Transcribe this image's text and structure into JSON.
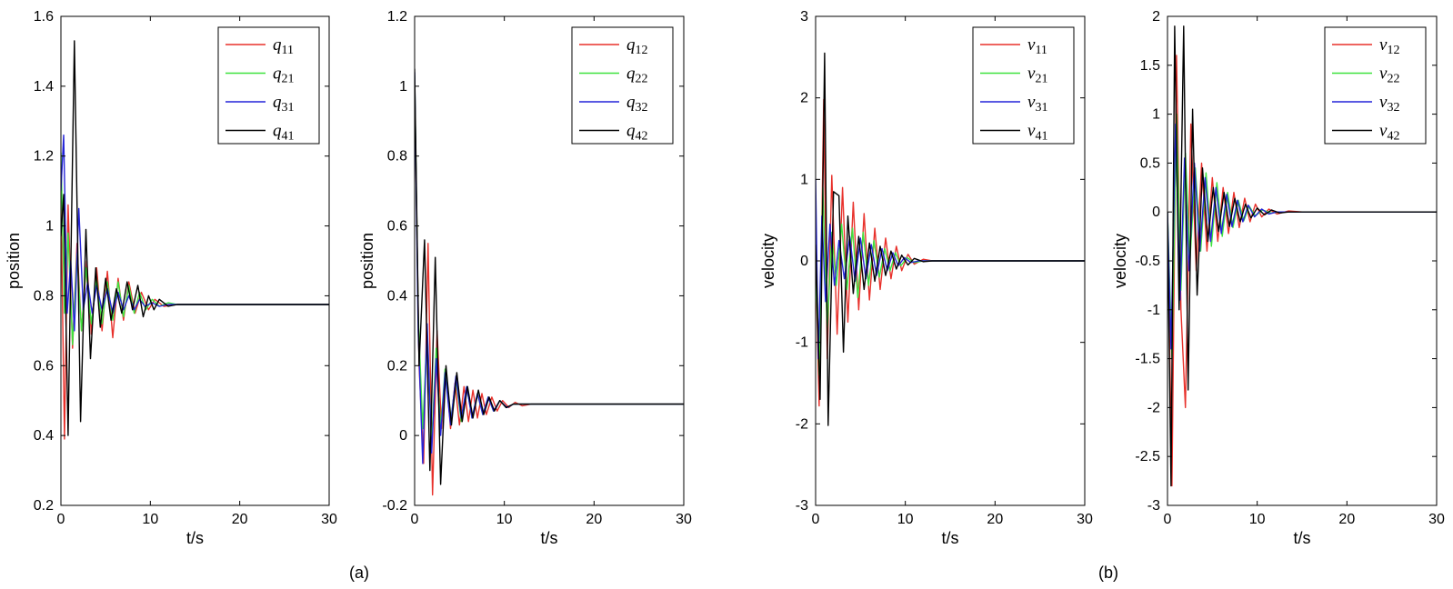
{
  "captions": [
    "(a)",
    "(b)"
  ],
  "colors": {
    "red": "#e8302a",
    "green": "#3ee23e",
    "blue": "#2424d8",
    "black": "#000000"
  },
  "chart_data": [
    {
      "type": "line",
      "xlabel": "t/s",
      "ylabel": "position",
      "xlim": [
        0,
        30
      ],
      "ylim": [
        0.2,
        1.6
      ],
      "xticks": [
        "0",
        "10",
        "20",
        "30"
      ],
      "yticks": [
        "0.2",
        "0.4",
        "0.6",
        "0.8",
        "1",
        "1.2",
        "1.4",
        "1.6"
      ],
      "legend_placement": "top-right",
      "series": [
        {
          "name": "q",
          "sub": "11",
          "color": "#e8302a",
          "x": [
            0,
            0.4,
            0.8,
            1.3,
            1.8,
            2.3,
            2.9,
            3.4,
            4.0,
            4.6,
            5.2,
            5.8,
            6.4,
            7.0,
            7.6,
            8.3,
            9.0,
            9.8,
            10.5,
            11.5,
            13,
            30
          ],
          "y": [
            1.08,
            0.39,
            1.06,
            0.65,
            0.95,
            0.7,
            0.9,
            0.69,
            0.88,
            0.7,
            0.87,
            0.68,
            0.85,
            0.73,
            0.84,
            0.75,
            0.81,
            0.76,
            0.79,
            0.77,
            0.775,
            0.775
          ]
        },
        {
          "name": "q",
          "sub": "21",
          "color": "#3ee23e",
          "x": [
            0,
            0.4,
            0.8,
            1.3,
            1.8,
            2.3,
            2.8,
            3.4,
            4.0,
            4.6,
            5.2,
            5.8,
            6.4,
            7.0,
            7.6,
            8.2,
            8.8,
            9.5,
            10.2,
            11,
            12,
            13,
            30
          ],
          "y": [
            1.21,
            0.75,
            0.98,
            0.66,
            0.92,
            0.7,
            0.88,
            0.72,
            0.85,
            0.72,
            0.84,
            0.73,
            0.84,
            0.74,
            0.83,
            0.75,
            0.81,
            0.76,
            0.79,
            0.77,
            0.78,
            0.775,
            0.775
          ]
        },
        {
          "name": "q",
          "sub": "31",
          "color": "#2424d8",
          "x": [
            0,
            0.3,
            0.7,
            1.1,
            1.5,
            2.0,
            2.5,
            3.0,
            3.5,
            4.0,
            4.6,
            5.2,
            5.8,
            6.4,
            7.0,
            7.6,
            8.2,
            8.8,
            9.4,
            10.2,
            11,
            12,
            30
          ],
          "y": [
            1.1,
            1.26,
            0.75,
            0.9,
            0.7,
            1.05,
            0.76,
            0.84,
            0.75,
            0.83,
            0.76,
            0.82,
            0.75,
            0.81,
            0.76,
            0.8,
            0.76,
            0.79,
            0.77,
            0.78,
            0.77,
            0.775,
            0.775
          ]
        },
        {
          "name": "q",
          "sub": "41",
          "color": "#000000",
          "x": [
            0,
            0.3,
            0.8,
            1.5,
            2.2,
            2.8,
            3.3,
            3.9,
            4.4,
            5.0,
            5.6,
            6.2,
            6.8,
            7.4,
            8.0,
            8.6,
            9.2,
            9.8,
            10.4,
            11,
            12,
            13,
            30
          ],
          "y": [
            0.97,
            1.09,
            0.4,
            1.53,
            0.44,
            0.99,
            0.62,
            0.88,
            0.71,
            0.85,
            0.73,
            0.82,
            0.75,
            0.84,
            0.76,
            0.83,
            0.74,
            0.8,
            0.76,
            0.79,
            0.77,
            0.775,
            0.775
          ]
        }
      ]
    },
    {
      "type": "line",
      "xlabel": "t/s",
      "ylabel": "position",
      "xlim": [
        0,
        30
      ],
      "ylim": [
        -0.2,
        1.2
      ],
      "xticks": [
        "0",
        "10",
        "20",
        "30"
      ],
      "yticks": [
        "-0.2",
        "0",
        "0.2",
        "0.4",
        "0.6",
        "0.8",
        "1",
        "1.2"
      ],
      "legend_placement": "top-right",
      "series": [
        {
          "name": "q",
          "sub": "12",
          "color": "#e8302a",
          "x": [
            0,
            0.5,
            1.0,
            1.5,
            2.0,
            2.5,
            3.0,
            3.5,
            4.0,
            4.5,
            5.0,
            5.5,
            6.0,
            6.5,
            7.0,
            7.5,
            8.0,
            8.6,
            9.2,
            9.8,
            10.5,
            11.2,
            12,
            13,
            30
          ],
          "y": [
            1.0,
            0.2,
            -0.08,
            0.55,
            -0.17,
            0.3,
            0.02,
            0.18,
            0.02,
            0.15,
            0.03,
            0.14,
            0.04,
            0.13,
            0.05,
            0.12,
            0.06,
            0.11,
            0.07,
            0.1,
            0.08,
            0.095,
            0.085,
            0.09,
            0.09
          ]
        },
        {
          "name": "q",
          "sub": "22",
          "color": "#3ee23e",
          "x": [
            0,
            0.4,
            0.9,
            1.4,
            1.9,
            2.4,
            2.9,
            3.4,
            4.0,
            4.6,
            5.2,
            5.8,
            6.4,
            7.0,
            7.6,
            8.2,
            8.8,
            9.5,
            10.3,
            11,
            12,
            30
          ],
          "y": [
            1.03,
            0.35,
            0.02,
            0.3,
            -0.02,
            0.25,
            0.02,
            0.19,
            0.04,
            0.16,
            0.04,
            0.14,
            0.05,
            0.12,
            0.06,
            0.11,
            0.07,
            0.1,
            0.08,
            0.09,
            0.09,
            0.09
          ]
        },
        {
          "name": "q",
          "sub": "32",
          "color": "#2424d8",
          "x": [
            0,
            0.4,
            0.9,
            1.4,
            1.9,
            2.4,
            2.9,
            3.4,
            4.0,
            4.6,
            5.2,
            5.8,
            6.4,
            7.0,
            7.6,
            8.2,
            8.8,
            9.5,
            10.3,
            11,
            12,
            30
          ],
          "y": [
            1.04,
            0.3,
            -0.08,
            0.32,
            -0.05,
            0.22,
            0.0,
            0.18,
            0.03,
            0.17,
            0.05,
            0.14,
            0.05,
            0.12,
            0.06,
            0.11,
            0.07,
            0.1,
            0.08,
            0.09,
            0.09,
            0.09
          ]
        },
        {
          "name": "q",
          "sub": "42",
          "color": "#000000",
          "x": [
            0,
            0.5,
            1.1,
            1.7,
            2.3,
            2.9,
            3.5,
            4.1,
            4.7,
            5.3,
            5.9,
            6.5,
            7.1,
            7.7,
            8.3,
            8.9,
            9.5,
            10.2,
            11,
            12,
            30
          ],
          "y": [
            1.05,
            0.2,
            0.56,
            -0.1,
            0.51,
            -0.14,
            0.2,
            0.03,
            0.18,
            0.04,
            0.14,
            0.05,
            0.13,
            0.06,
            0.11,
            0.07,
            0.1,
            0.08,
            0.09,
            0.09,
            0.09
          ]
        }
      ]
    },
    {
      "type": "line",
      "xlabel": "t/s",
      "ylabel": "velocity",
      "xlim": [
        0,
        30
      ],
      "ylim": [
        -3,
        3
      ],
      "xticks": [
        "0",
        "10",
        "20",
        "30"
      ],
      "yticks": [
        "-3",
        "-2",
        "-1",
        "0",
        "1",
        "2",
        "3"
      ],
      "legend_placement": "top-right",
      "series": [
        {
          "name": "v",
          "sub": "11",
          "color": "#e8302a",
          "x": [
            0,
            0.4,
            0.9,
            1.3,
            1.8,
            2.4,
            3.0,
            3.6,
            4.2,
            4.8,
            5.4,
            6.0,
            6.6,
            7.2,
            7.8,
            8.4,
            9.0,
            9.6,
            10.3,
            11,
            12,
            13,
            30
          ],
          "y": [
            0,
            -1.78,
            1.98,
            -1.2,
            1.05,
            -0.9,
            0.9,
            -0.75,
            0.72,
            -0.6,
            0.58,
            -0.48,
            0.4,
            -0.35,
            0.28,
            -0.22,
            0.18,
            -0.12,
            0.08,
            -0.04,
            0.02,
            0,
            0
          ]
        },
        {
          "name": "v",
          "sub": "21",
          "color": "#3ee23e",
          "x": [
            0,
            0.4,
            0.8,
            1.3,
            1.8,
            2.3,
            2.9,
            3.5,
            4.1,
            4.7,
            5.3,
            5.9,
            6.5,
            7.1,
            7.7,
            8.3,
            8.9,
            9.5,
            10.2,
            11,
            12,
            30
          ],
          "y": [
            0,
            -1.4,
            0.9,
            -0.85,
            0.35,
            -0.3,
            0.45,
            -0.35,
            0.4,
            -0.45,
            0.35,
            -0.3,
            0.25,
            -0.2,
            0.15,
            -0.12,
            0.1,
            -0.06,
            0.04,
            -0.02,
            0,
            0
          ]
        },
        {
          "name": "v",
          "sub": "31",
          "color": "#2424d8",
          "x": [
            0,
            0.3,
            0.7,
            1.1,
            1.6,
            2.1,
            2.6,
            3.2,
            3.8,
            4.4,
            5.0,
            5.6,
            6.2,
            6.8,
            7.4,
            8.0,
            8.6,
            9.2,
            9.9,
            10.6,
            11.5,
            30
          ],
          "y": [
            1.0,
            -1.2,
            0.55,
            -0.5,
            0.45,
            -0.3,
            0.25,
            -0.22,
            0.3,
            -0.25,
            0.28,
            -0.22,
            0.2,
            -0.18,
            0.15,
            -0.12,
            0.1,
            -0.06,
            0.04,
            -0.02,
            0,
            0
          ]
        },
        {
          "name": "v",
          "sub": "41",
          "color": "#000000",
          "x": [
            0,
            0.5,
            1.0,
            1.4,
            2.0,
            2.6,
            3.1,
            3.6,
            4.2,
            4.8,
            5.4,
            6.0,
            6.6,
            7.2,
            7.8,
            8.4,
            9.0,
            9.6,
            10.3,
            11,
            12,
            13,
            30
          ],
          "y": [
            0.2,
            -1.7,
            2.55,
            -2.02,
            0.85,
            0.8,
            -1.12,
            0.55,
            -0.4,
            0.3,
            -0.35,
            0.22,
            -0.25,
            0.18,
            -0.18,
            0.12,
            -0.1,
            0.07,
            -0.05,
            0.03,
            -0.01,
            0,
            0
          ]
        }
      ]
    },
    {
      "type": "line",
      "xlabel": "t/s",
      "ylabel": "velocity",
      "xlim": [
        0,
        30
      ],
      "ylim": [
        -3,
        2
      ],
      "xticks": [
        "0",
        "10",
        "20",
        "30"
      ],
      "yticks": [
        "-3",
        "-2.5",
        "-2",
        "-1.5",
        "-1",
        "-0.5",
        "0",
        "0.5",
        "1",
        "1.5",
        "2"
      ],
      "legend_placement": "top-right",
      "series": [
        {
          "name": "v",
          "sub": "12",
          "color": "#e8302a",
          "x": [
            0,
            0.5,
            1.0,
            1.5,
            2.0,
            2.6,
            3.2,
            3.8,
            4.4,
            5.0,
            5.6,
            6.2,
            6.8,
            7.4,
            8.0,
            8.6,
            9.2,
            9.8,
            10.5,
            11.3,
            12.2,
            13.5,
            15,
            30
          ],
          "y": [
            0,
            -2.8,
            1.6,
            -1.0,
            -2.0,
            0.9,
            -0.6,
            0.5,
            -0.4,
            0.35,
            -0.3,
            0.25,
            -0.22,
            0.2,
            -0.16,
            0.14,
            -0.1,
            0.08,
            -0.05,
            0.03,
            -0.02,
            0.01,
            0,
            0
          ]
        },
        {
          "name": "v",
          "sub": "22",
          "color": "#3ee23e",
          "x": [
            0,
            0.5,
            1.0,
            1.5,
            2.0,
            2.5,
            3.1,
            3.7,
            4.3,
            4.9,
            5.5,
            6.1,
            6.7,
            7.3,
            7.9,
            8.5,
            9.1,
            9.8,
            10.6,
            11.5,
            12.5,
            30
          ],
          "y": [
            0,
            -1.5,
            1.0,
            -0.8,
            0.6,
            -0.5,
            0.45,
            -0.4,
            0.4,
            -0.35,
            0.3,
            -0.25,
            0.2,
            -0.16,
            0.12,
            -0.09,
            0.06,
            -0.04,
            0.02,
            -0.01,
            0,
            0
          ]
        },
        {
          "name": "v",
          "sub": "32",
          "color": "#2424d8",
          "x": [
            0,
            0.4,
            0.9,
            1.4,
            1.9,
            2.4,
            3.0,
            3.6,
            4.2,
            4.8,
            5.4,
            6.0,
            6.6,
            7.2,
            7.8,
            8.4,
            9.0,
            9.7,
            10.5,
            11.3,
            12.2,
            30
          ],
          "y": [
            0,
            -1.4,
            0.9,
            -0.9,
            0.55,
            -0.6,
            0.5,
            -0.4,
            0.35,
            -0.3,
            0.25,
            -0.22,
            0.18,
            -0.15,
            0.12,
            -0.1,
            0.07,
            -0.05,
            0.03,
            -0.02,
            0,
            0
          ]
        },
        {
          "name": "v",
          "sub": "42",
          "color": "#000000",
          "x": [
            0,
            0.4,
            0.8,
            1.3,
            1.8,
            2.3,
            2.8,
            3.3,
            3.9,
            4.5,
            5.1,
            5.7,
            6.3,
            6.9,
            7.5,
            8.1,
            8.7,
            9.3,
            10.0,
            10.8,
            11.6,
            12.5,
            13.5,
            30
          ],
          "y": [
            0,
            -2.8,
            1.9,
            -1.0,
            1.9,
            -1.82,
            1.05,
            -0.85,
            0.45,
            -0.3,
            0.25,
            -0.2,
            0.2,
            -0.15,
            0.14,
            -0.1,
            0.08,
            -0.06,
            0.04,
            -0.03,
            0.02,
            -0.01,
            0,
            0
          ]
        }
      ]
    }
  ]
}
